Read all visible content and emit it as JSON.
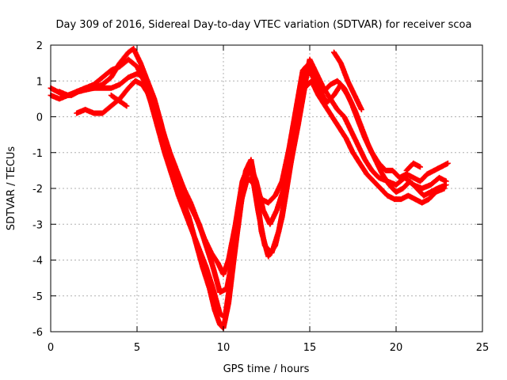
{
  "chart_data": {
    "type": "scatter",
    "title": "Day 309 of 2016, Sidereal Day-to-day VTEC variation (SDTVAR) for receiver scoa",
    "xlabel": "GPS time / hours",
    "ylabel": "SDTVAR / TECUs",
    "xlim": [
      0,
      25
    ],
    "ylim": [
      -6,
      2
    ],
    "xticks": [
      0,
      5,
      10,
      15,
      20,
      25
    ],
    "yticks": [
      -6,
      -5,
      -4,
      -3,
      -2,
      -1,
      0,
      1,
      2
    ],
    "grid": true,
    "marker": "plus",
    "color": "#ff0000",
    "series": [
      {
        "x": [
          0.0,
          0.4,
          0.8,
          1.2,
          1.6,
          2.0,
          2.5,
          3.0,
          3.5,
          4.0,
          4.5,
          4.8,
          5.2,
          5.6,
          6.0,
          6.4,
          6.8,
          7.2,
          7.6,
          8.0,
          8.4,
          8.8,
          9.2,
          9.5,
          9.8,
          10.0,
          10.3,
          10.6,
          11.0,
          11.3,
          11.6,
          11.9,
          12.2,
          12.6,
          13.0,
          13.4,
          13.8,
          14.2,
          14.6,
          15.0,
          15.4,
          15.8,
          16.2,
          16.6,
          17.0,
          17.4,
          17.8,
          18.2,
          18.6,
          19.0,
          19.5,
          20.0,
          20.5,
          21.0,
          21.5,
          22.0,
          22.5,
          22.9
        ],
        "y": [
          0.8,
          0.7,
          0.6,
          0.6,
          0.7,
          0.75,
          0.8,
          0.9,
          1.1,
          1.5,
          1.8,
          1.9,
          1.5,
          1.0,
          0.5,
          -0.2,
          -1.0,
          -1.8,
          -2.3,
          -2.8,
          -3.5,
          -4.2,
          -4.8,
          -5.4,
          -5.8,
          -5.9,
          -5.2,
          -4.0,
          -2.5,
          -1.5,
          -1.2,
          -2.0,
          -3.2,
          -3.9,
          -3.6,
          -2.8,
          -1.6,
          -0.4,
          0.6,
          1.6,
          1.2,
          0.8,
          0.5,
          0.2,
          0.0,
          -0.4,
          -0.8,
          -1.2,
          -1.5,
          -1.7,
          -1.8,
          -1.9,
          -1.7,
          -1.9,
          -2.0,
          -1.9,
          -1.7,
          -1.8
        ]
      },
      {
        "x": [
          0.0,
          0.5,
          1.0,
          1.5,
          2.0,
          2.5,
          3.0,
          3.5,
          4.0,
          4.5,
          5.0,
          5.4,
          5.8,
          6.2,
          6.6,
          7.0,
          7.4,
          7.8,
          8.2,
          8.6,
          9.0,
          9.4,
          9.8,
          10.1,
          10.4,
          10.8,
          11.2,
          11.6,
          12.0,
          12.4,
          12.8,
          13.2,
          13.6,
          14.0,
          14.4,
          14.8,
          15.2,
          15.6,
          16.0,
          16.4,
          16.8,
          17.2,
          17.6,
          18.0,
          18.4,
          18.8,
          19.2,
          19.6,
          20.0,
          20.4,
          20.8,
          21.2,
          21.6,
          22.0,
          22.4,
          22.9
        ],
        "y": [
          0.6,
          0.5,
          0.6,
          0.7,
          0.8,
          0.9,
          1.1,
          1.3,
          1.4,
          1.6,
          1.4,
          1.0,
          0.4,
          -0.3,
          -1.0,
          -1.6,
          -2.2,
          -2.7,
          -3.2,
          -3.7,
          -4.2,
          -4.8,
          -5.5,
          -5.6,
          -4.6,
          -3.2,
          -1.8,
          -1.4,
          -2.6,
          -3.6,
          -3.8,
          -3.2,
          -2.2,
          -1.0,
          0.4,
          1.4,
          1.1,
          0.7,
          0.4,
          0.6,
          0.9,
          0.6,
          0.2,
          -0.3,
          -0.8,
          -1.2,
          -1.6,
          -1.9,
          -2.1,
          -2.0,
          -1.8,
          -2.0,
          -2.2,
          -2.1,
          -2.0,
          -1.9
        ]
      },
      {
        "x": [
          1.5,
          2.0,
          2.5,
          3.0,
          3.5,
          4.0,
          4.5,
          4.9,
          5.3,
          5.7,
          6.1,
          6.5,
          6.9,
          7.3,
          7.7,
          8.1,
          8.5,
          8.9,
          9.3,
          9.7,
          10.0,
          10.3,
          10.7,
          11.1,
          11.5,
          11.9,
          12.3,
          12.7,
          13.1,
          13.5,
          13.9,
          14.3,
          14.7,
          15.1,
          15.5,
          15.9,
          16.3,
          16.7,
          17.1,
          17.5,
          17.9,
          18.3,
          18.7,
          19.1,
          19.5,
          19.9,
          20.3,
          20.7,
          21.1,
          21.5,
          21.9,
          22.3,
          22.8
        ],
        "y": [
          0.1,
          0.2,
          0.1,
          0.1,
          0.3,
          0.5,
          0.8,
          1.0,
          0.9,
          0.6,
          0.2,
          -0.4,
          -1.0,
          -1.5,
          -2.0,
          -2.4,
          -2.9,
          -3.4,
          -3.8,
          -4.1,
          -4.4,
          -4.0,
          -3.0,
          -1.8,
          -1.3,
          -1.8,
          -2.6,
          -3.0,
          -2.6,
          -2.0,
          -1.3,
          -0.3,
          0.8,
          1.0,
          0.6,
          0.3,
          0.0,
          -0.3,
          -0.6,
          -1.0,
          -1.3,
          -1.6,
          -1.8,
          -2.0,
          -2.2,
          -2.3,
          -2.3,
          -2.2,
          -2.3,
          -2.4,
          -2.3,
          -2.1,
          -2.0
        ]
      },
      {
        "x": [
          0.5,
          1.0,
          1.5,
          2.0,
          2.5,
          3.0,
          3.5,
          4.0,
          4.5,
          5.0,
          5.4,
          5.8,
          6.2,
          6.6,
          7.0,
          7.4,
          7.8,
          8.2,
          8.6,
          9.0,
          9.4,
          9.8,
          10.2,
          10.6,
          11.0,
          11.4,
          11.8,
          12.2,
          12.6,
          13.0,
          13.4,
          13.8,
          14.2,
          14.6,
          15.0,
          15.4,
          15.8,
          16.2,
          16.6,
          17.0,
          17.4,
          17.8,
          18.2,
          18.6,
          19.0,
          19.4,
          19.8,
          20.2,
          20.6,
          21.0,
          21.4,
          21.8,
          22.2,
          22.6,
          23.0
        ],
        "y": [
          0.7,
          0.6,
          0.7,
          0.8,
          0.8,
          0.8,
          0.8,
          0.9,
          1.1,
          1.2,
          1.1,
          0.7,
          0.1,
          -0.6,
          -1.2,
          -1.8,
          -2.3,
          -2.6,
          -3.0,
          -3.6,
          -4.2,
          -4.9,
          -4.8,
          -3.8,
          -2.4,
          -1.7,
          -1.9,
          -2.3,
          -2.4,
          -2.2,
          -1.8,
          -0.9,
          0.2,
          1.3,
          1.5,
          1.0,
          0.7,
          0.9,
          1.0,
          0.8,
          0.4,
          -0.1,
          -0.6,
          -1.0,
          -1.3,
          -1.5,
          -1.5,
          -1.7,
          -1.6,
          -1.7,
          -1.8,
          -1.6,
          -1.5,
          -1.4,
          -1.3
        ]
      },
      {
        "x": [
          3.5,
          3.8,
          4.1,
          4.4
        ],
        "y": [
          0.6,
          0.5,
          0.4,
          0.3
        ]
      },
      {
        "x": [
          16.4,
          16.8,
          17.2,
          17.6,
          18.0
        ],
        "y": [
          1.8,
          1.5,
          1.0,
          0.6,
          0.2
        ]
      },
      {
        "x": [
          20.6,
          21.0,
          21.4
        ],
        "y": [
          -1.5,
          -1.3,
          -1.4
        ]
      }
    ]
  }
}
